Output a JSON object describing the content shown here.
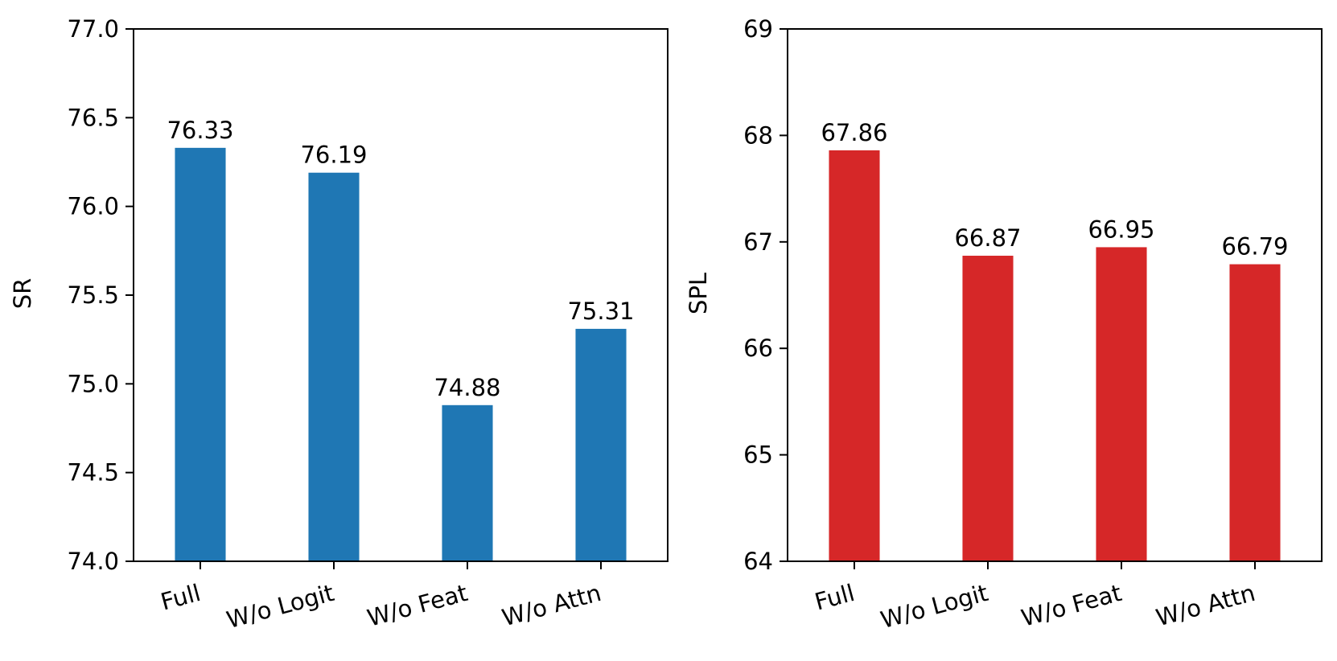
{
  "chart_data": [
    {
      "type": "bar",
      "categories": [
        "Full",
        "W/o Logit",
        "W/o Feat",
        "W/o Attn"
      ],
      "values": [
        76.33,
        76.19,
        74.88,
        75.31
      ],
      "value_labels": [
        "76.33",
        "76.19",
        "74.88",
        "75.31"
      ],
      "title": "",
      "xlabel": "",
      "ylabel": "SR",
      "ylim": [
        74.0,
        77.0
      ],
      "yticks": [
        "74.0",
        "74.5",
        "75.0",
        "75.5",
        "76.0",
        "76.5",
        "77.0"
      ],
      "color": "#1f77b4",
      "grid": false
    },
    {
      "type": "bar",
      "categories": [
        "Full",
        "W/o Logit",
        "W/o Feat",
        "W/o Attn"
      ],
      "values": [
        67.86,
        66.87,
        66.95,
        66.79
      ],
      "value_labels": [
        "67.86",
        "66.87",
        "66.95",
        "66.79"
      ],
      "title": "",
      "xlabel": "",
      "ylabel": "SPL",
      "ylim": [
        64,
        69
      ],
      "yticks": [
        "64",
        "65",
        "66",
        "67",
        "68",
        "69"
      ],
      "color": "#d62728",
      "grid": false
    }
  ]
}
